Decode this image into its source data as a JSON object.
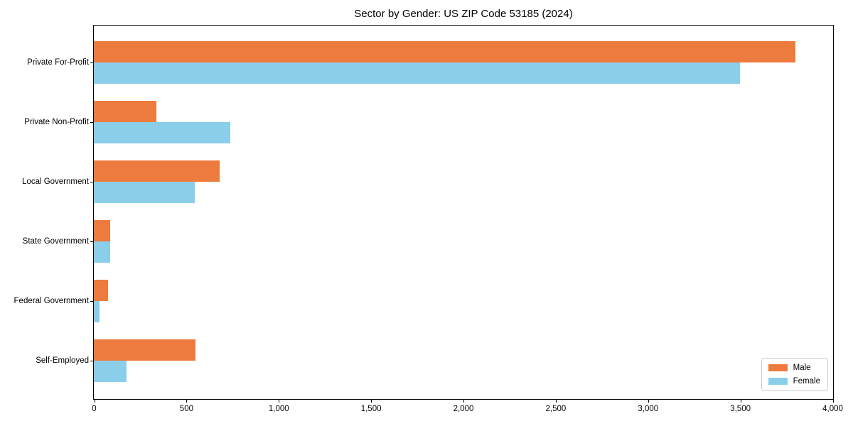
{
  "title": "Sector by Gender: US ZIP Code 53185 (2024)",
  "colors": {
    "male": "#ec7b3d",
    "female": "#8bceea",
    "axis": "#000000",
    "legend_border": "#cccccc",
    "background": "#ffffff"
  },
  "chart_data": {
    "type": "bar",
    "orientation": "horizontal",
    "title": "Sector by Gender: US ZIP Code 53185 (2024)",
    "categories": [
      "Private For-Profit",
      "Private Non-Profit",
      "Local Government",
      "State Government",
      "Federal Government",
      "Self-Employed"
    ],
    "series": [
      {
        "name": "Male",
        "color": "#ec7b3d",
        "values": [
          3800,
          340,
          680,
          90,
          75,
          550
        ]
      },
      {
        "name": "Female",
        "color": "#8bceea",
        "values": [
          3500,
          740,
          545,
          90,
          30,
          175
        ]
      }
    ],
    "xlabel": "",
    "ylabel": "",
    "xlim": [
      0,
      4000
    ],
    "x_ticks": [
      0,
      500,
      1000,
      1500,
      2000,
      2500,
      3000,
      3500,
      4000
    ],
    "x_tick_labels": [
      "0",
      "500",
      "1,000",
      "1,500",
      "2,000",
      "2,500",
      "3,000",
      "3,500",
      "4,000"
    ],
    "grid": false,
    "legend_position": "lower right",
    "legend_entries": [
      "Male",
      "Female"
    ]
  }
}
